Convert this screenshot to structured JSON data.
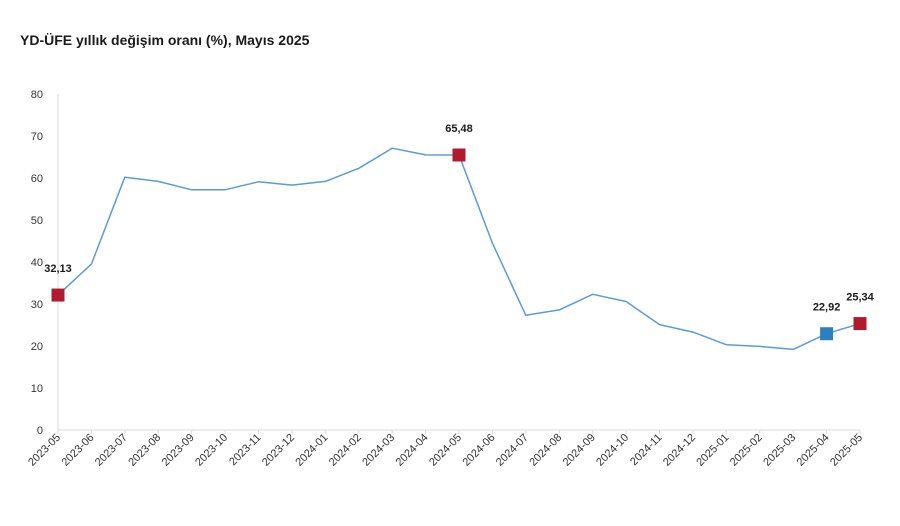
{
  "chart_data": {
    "type": "line",
    "title": "YD-ÜFE yıllık değişim oranı (%), Mayıs 2025",
    "xlabel": "",
    "ylabel": "",
    "ylim": [
      0,
      80
    ],
    "yticks": [
      0,
      10,
      20,
      30,
      40,
      50,
      60,
      70,
      80
    ],
    "grid": false,
    "legend": "none",
    "line_color": "#5b9bd5",
    "categories": [
      "2023-05",
      "2023-06",
      "2023-07",
      "2023-08",
      "2023-09",
      "2023-10",
      "2023-11",
      "2023-12",
      "2024-01",
      "2024-02",
      "2024-03",
      "2024-04",
      "2024-05",
      "2024-06",
      "2024-07",
      "2024-08",
      "2024-09",
      "2024-10",
      "2024-11",
      "2024-12",
      "2025-01",
      "2025-02",
      "2025-03",
      "2025-04",
      "2025-05"
    ],
    "series": [
      {
        "values": [
          32.13,
          39.5,
          60.2,
          59.2,
          57.2,
          57.2,
          59.1,
          58.3,
          59.2,
          62.3,
          67.1,
          65.5,
          65.48,
          44.5,
          27.3,
          28.6,
          32.3,
          30.6,
          25.1,
          23.3,
          20.3,
          19.9,
          19.2,
          22.92,
          25.34
        ]
      }
    ],
    "markers": [
      {
        "index": 0,
        "label": "32,13",
        "color": "#b01c2e"
      },
      {
        "index": 12,
        "label": "65,48",
        "color": "#b01c2e"
      },
      {
        "index": 23,
        "label": "22,92",
        "color": "#2e7fbf"
      },
      {
        "index": 24,
        "label": "25,34",
        "color": "#b01c2e"
      }
    ]
  }
}
